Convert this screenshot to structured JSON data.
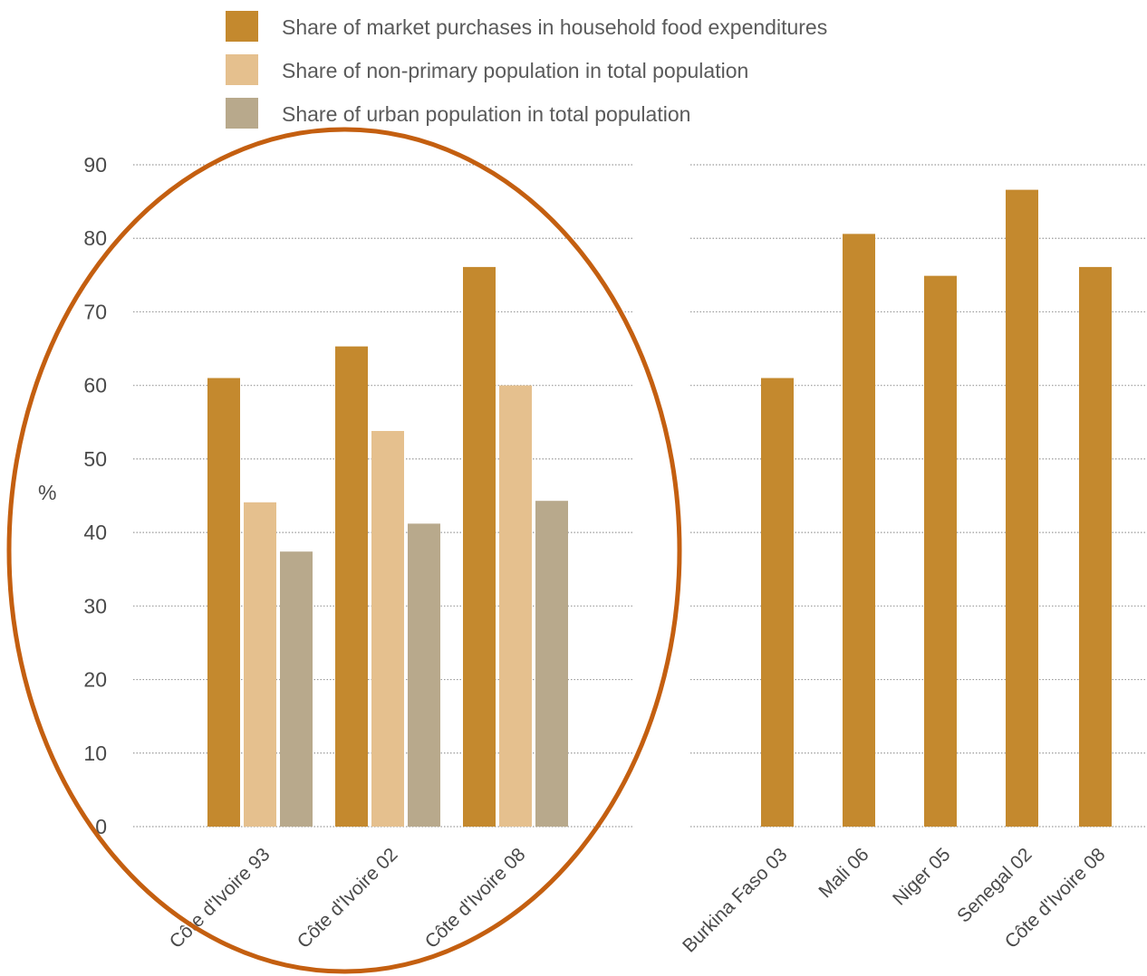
{
  "chart_data": {
    "type": "bar",
    "ylabel": "%",
    "ylim": [
      0,
      90
    ],
    "yticks": [
      0,
      10,
      20,
      30,
      40,
      50,
      60,
      70,
      80,
      90
    ],
    "grid": true,
    "legend_placement": "top",
    "series_meta": [
      {
        "name": "Share of market purchases in household food expenditures",
        "color": "#c4892e"
      },
      {
        "name": "Share of non-primary population in total population",
        "color": "#e5c08e"
      },
      {
        "name": "Share of urban population in total population",
        "color": "#b8a98c"
      }
    ],
    "panels": [
      {
        "categories": [
          "Côte d'Ivoire 93",
          "Côte d'Ivoire 02",
          "Côte d'Ivoire 08"
        ],
        "series": [
          {
            "name": "Share of market purchases in household food expenditures",
            "values": [
              61,
              65.3,
              76.1
            ]
          },
          {
            "name": "Share of non-primary population in total population",
            "values": [
              44.1,
              53.8,
              60
            ]
          },
          {
            "name": "Share of urban population in total population",
            "values": [
              37.4,
              41.2,
              44.3
            ]
          }
        ]
      },
      {
        "categories": [
          "Burkina Faso 03",
          "Mali 06",
          "Niger 05",
          "Senegal 02",
          "Côte d'Ivoire 08"
        ],
        "series": [
          {
            "name": "Share of market purchases in household food expenditures",
            "values": [
              61,
              80.6,
              74.9,
              86.6,
              76.1
            ]
          }
        ]
      }
    ],
    "annotations": [
      {
        "type": "ellipse",
        "target": "left panel",
        "color": "#c45f10"
      }
    ]
  }
}
